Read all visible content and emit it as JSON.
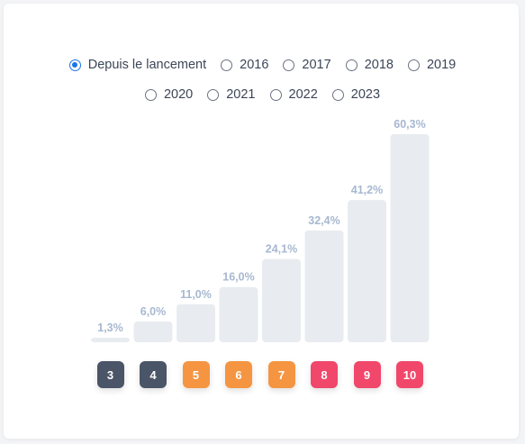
{
  "periods": [
    {
      "label": "Depuis le lancement",
      "checked": true
    },
    {
      "label": "2016",
      "checked": false
    },
    {
      "label": "2017",
      "checked": false
    },
    {
      "label": "2018",
      "checked": false
    },
    {
      "label": "2019",
      "checked": false
    },
    {
      "label": "2020",
      "checked": false
    },
    {
      "label": "2021",
      "checked": false
    },
    {
      "label": "2022",
      "checked": false
    },
    {
      "label": "2023",
      "checked": false
    }
  ],
  "chart_data": {
    "type": "bar",
    "categories": [
      "3",
      "4",
      "5",
      "6",
      "7",
      "8",
      "9",
      "10"
    ],
    "values": [
      1.3,
      6.0,
      11.0,
      16.0,
      24.1,
      32.4,
      41.2,
      60.3
    ],
    "value_labels": [
      "1,3%",
      "6,0%",
      "11,0%",
      "16,0%",
      "24,1%",
      "32,4%",
      "41,2%",
      "60,3%"
    ],
    "ylim": [
      0,
      60.3
    ],
    "grid": false,
    "bar_color": "#e8ecf0",
    "label_color": "#a7b8d0"
  },
  "badges": [
    {
      "label": "3",
      "color": "#4a5568"
    },
    {
      "label": "4",
      "color": "#4a5568"
    },
    {
      "label": "5",
      "color": "#f59542"
    },
    {
      "label": "6",
      "color": "#f59542"
    },
    {
      "label": "7",
      "color": "#f59542"
    },
    {
      "label": "8",
      "color": "#f0476b"
    },
    {
      "label": "9",
      "color": "#f0476b"
    },
    {
      "label": "10",
      "color": "#f0476b"
    }
  ]
}
